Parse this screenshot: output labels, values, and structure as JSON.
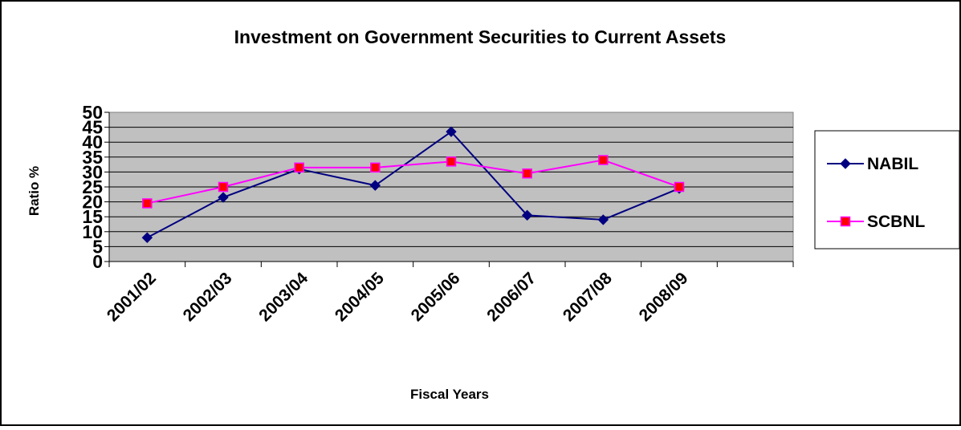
{
  "chart_data": {
    "type": "line",
    "title": "Investment on Government Securities to Current Assets",
    "xlabel": "Fiscal Years",
    "ylabel": "Ratio %",
    "categories": [
      "2001/02",
      "2002/03",
      "2003/04",
      "2004/05",
      "2005/06",
      "2006/07",
      "2007/08",
      "2008/09"
    ],
    "yticks": [
      0,
      5,
      10,
      15,
      20,
      25,
      30,
      35,
      40,
      45,
      50
    ],
    "ylim": [
      0,
      50
    ],
    "grid": true,
    "legend_position": "right",
    "plot_background": "#c0c0c0",
    "series": [
      {
        "name": "NABIL",
        "values": [
          8,
          21.5,
          31,
          25.5,
          43.5,
          15.5,
          14,
          24.5
        ],
        "color": "#000080",
        "marker": "diamond"
      },
      {
        "name": "SCBNL",
        "values": [
          19.5,
          25,
          31.5,
          31.5,
          33.5,
          29.5,
          34,
          25
        ],
        "color": "#ff00ff",
        "marker": "square",
        "marker_fill": "#ff0000"
      }
    ]
  }
}
